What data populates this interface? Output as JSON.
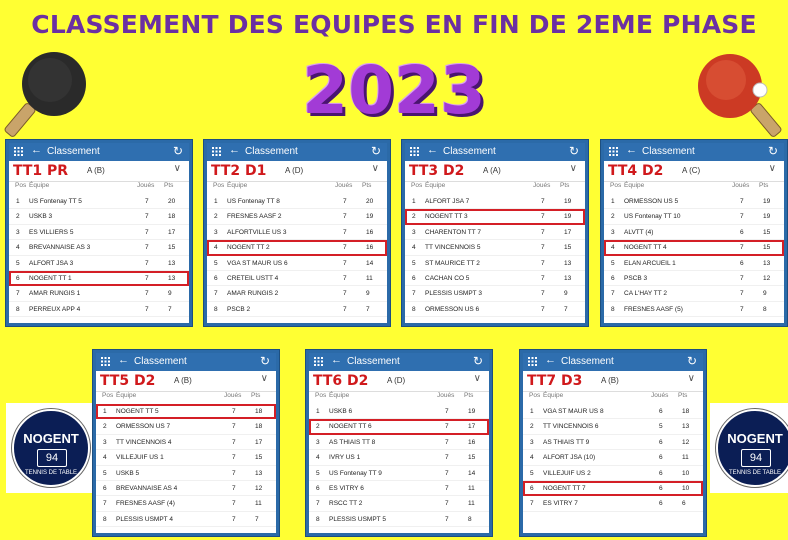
{
  "title": "CLASSEMENT DES EQUIPES EN FIN DE 2EME PHASE",
  "year": "2023",
  "logo": {
    "name": "NOGENT",
    "number": "94",
    "sub": "TENNIS DE TABLE"
  },
  "app": {
    "screen_label": "Classement",
    "col_pos": "Pos",
    "col_team": "Équipe",
    "col_played": "Joués",
    "col_pts": "Pts"
  },
  "colors": {
    "accent": "#2f6fb0",
    "highlight": "#d41f26",
    "division": "#d0191c",
    "background": "#ffff33"
  },
  "cards": [
    {
      "division": "TT1 PR",
      "group": "A (B)",
      "highlight": 6,
      "rows": [
        {
          "pos": "1",
          "team": "US Fontenay TT 5",
          "played": "7",
          "pts": "20"
        },
        {
          "pos": "2",
          "team": "USKB 3",
          "played": "7",
          "pts": "18"
        },
        {
          "pos": "3",
          "team": "ES VILLIERS 5",
          "played": "7",
          "pts": "17"
        },
        {
          "pos": "4",
          "team": "BREVANNAISE AS 3",
          "played": "7",
          "pts": "15"
        },
        {
          "pos": "5",
          "team": "ALFORT JSA 3",
          "played": "7",
          "pts": "13"
        },
        {
          "pos": "6",
          "team": "NOGENT TT 1",
          "played": "7",
          "pts": "13"
        },
        {
          "pos": "7",
          "team": "AMAR RUNGIS 1",
          "played": "7",
          "pts": "9"
        },
        {
          "pos": "8",
          "team": "PERREUX APP 4",
          "played": "7",
          "pts": "7"
        }
      ]
    },
    {
      "division": "TT2 D1",
      "group": "A (D)",
      "highlight": 4,
      "rows": [
        {
          "pos": "1",
          "team": "US Fontenay TT 8",
          "played": "7",
          "pts": "20"
        },
        {
          "pos": "2",
          "team": "FRESNES AASF 2",
          "played": "7",
          "pts": "19"
        },
        {
          "pos": "3",
          "team": "ALFORTVILLE US 3",
          "played": "7",
          "pts": "16"
        },
        {
          "pos": "4",
          "team": "NOGENT TT 2",
          "played": "7",
          "pts": "16"
        },
        {
          "pos": "5",
          "team": "VGA ST MAUR US 6",
          "played": "7",
          "pts": "14"
        },
        {
          "pos": "6",
          "team": "CRETEIL USTT 4",
          "played": "7",
          "pts": "11"
        },
        {
          "pos": "7",
          "team": "AMAR RUNGIS 2",
          "played": "7",
          "pts": "9"
        },
        {
          "pos": "8",
          "team": "PSCB 2",
          "played": "7",
          "pts": "7"
        }
      ]
    },
    {
      "division": "TT3 D2",
      "group": "A (A)",
      "highlight": 2,
      "rows": [
        {
          "pos": "1",
          "team": "ALFORT JSA 7",
          "played": "7",
          "pts": "19"
        },
        {
          "pos": "2",
          "team": "NOGENT TT 3",
          "played": "7",
          "pts": "19"
        },
        {
          "pos": "3",
          "team": "CHARENTON TT 7",
          "played": "7",
          "pts": "17"
        },
        {
          "pos": "4",
          "team": "TT VINCENNOIS 5",
          "played": "7",
          "pts": "15"
        },
        {
          "pos": "5",
          "team": "ST MAURICE TT 2",
          "played": "7",
          "pts": "13"
        },
        {
          "pos": "6",
          "team": "CACHAN CO 5",
          "played": "7",
          "pts": "13"
        },
        {
          "pos": "7",
          "team": "PLESSIS USMPT 3",
          "played": "7",
          "pts": "9"
        },
        {
          "pos": "8",
          "team": "ORMESSON US 6",
          "played": "7",
          "pts": "7"
        }
      ]
    },
    {
      "division": "TT4 D2",
      "group": "A (C)",
      "highlight": 4,
      "rows": [
        {
          "pos": "1",
          "team": "ORMESSON US 5",
          "played": "7",
          "pts": "19"
        },
        {
          "pos": "2",
          "team": "US Fontenay TT 10",
          "played": "7",
          "pts": "19"
        },
        {
          "pos": "3",
          "team": "ALVTT (4)",
          "played": "6",
          "pts": "15"
        },
        {
          "pos": "4",
          "team": "NOGENT TT 4",
          "played": "7",
          "pts": "15"
        },
        {
          "pos": "5",
          "team": "ELAN ARCUEIL 1",
          "played": "6",
          "pts": "13"
        },
        {
          "pos": "6",
          "team": "PSCB 3",
          "played": "7",
          "pts": "12"
        },
        {
          "pos": "7",
          "team": "CA L'HAY TT 2",
          "played": "7",
          "pts": "9"
        },
        {
          "pos": "8",
          "team": "FRESNES AASF (5)",
          "played": "7",
          "pts": "8"
        }
      ]
    },
    {
      "division": "TT5 D2",
      "group": "A (B)",
      "highlight": 1,
      "rows": [
        {
          "pos": "1",
          "team": "NOGENT TT 5",
          "played": "7",
          "pts": "18"
        },
        {
          "pos": "2",
          "team": "ORMESSON US 7",
          "played": "7",
          "pts": "18"
        },
        {
          "pos": "3",
          "team": "TT VINCENNOIS 4",
          "played": "7",
          "pts": "17"
        },
        {
          "pos": "4",
          "team": "VILLEJUIF US 1",
          "played": "7",
          "pts": "15"
        },
        {
          "pos": "5",
          "team": "USKB 5",
          "played": "7",
          "pts": "13"
        },
        {
          "pos": "6",
          "team": "BREVANNAISE AS 4",
          "played": "7",
          "pts": "12"
        },
        {
          "pos": "7",
          "team": "FRESNES AASF (4)",
          "played": "7",
          "pts": "11"
        },
        {
          "pos": "8",
          "team": "PLESSIS USMPT 4",
          "played": "7",
          "pts": "7"
        }
      ]
    },
    {
      "division": "TT6 D2",
      "group": "A (D)",
      "highlight": 2,
      "rows": [
        {
          "pos": "1",
          "team": "USKB 6",
          "played": "7",
          "pts": "19"
        },
        {
          "pos": "2",
          "team": "NOGENT TT 6",
          "played": "7",
          "pts": "17"
        },
        {
          "pos": "3",
          "team": "AS THIAIS TT 8",
          "played": "7",
          "pts": "16"
        },
        {
          "pos": "4",
          "team": "IVRY US 1",
          "played": "7",
          "pts": "15"
        },
        {
          "pos": "5",
          "team": "US Fontenay TT 9",
          "played": "7",
          "pts": "14"
        },
        {
          "pos": "6",
          "team": "ES VITRY 6",
          "played": "7",
          "pts": "11"
        },
        {
          "pos": "7",
          "team": "RSCC TT 2",
          "played": "7",
          "pts": "11"
        },
        {
          "pos": "8",
          "team": "PLESSIS USMPT 5",
          "played": "7",
          "pts": "8"
        }
      ]
    },
    {
      "division": "TT7 D3",
      "group": "A (B)",
      "highlight": 6,
      "rows": [
        {
          "pos": "1",
          "team": "VGA ST MAUR US 8",
          "played": "6",
          "pts": "18"
        },
        {
          "pos": "2",
          "team": "TT VINCENNOIS 6",
          "played": "5",
          "pts": "13"
        },
        {
          "pos": "3",
          "team": "AS THIAIS TT 9",
          "played": "6",
          "pts": "12"
        },
        {
          "pos": "4",
          "team": "ALFORT JSA (10)",
          "played": "6",
          "pts": "11"
        },
        {
          "pos": "5",
          "team": "VILLEJUIF US 2",
          "played": "6",
          "pts": "10"
        },
        {
          "pos": "6",
          "team": "NOGENT TT 7",
          "played": "6",
          "pts": "10"
        },
        {
          "pos": "7",
          "team": "ES VITRY 7",
          "played": "6",
          "pts": "6"
        }
      ]
    }
  ]
}
